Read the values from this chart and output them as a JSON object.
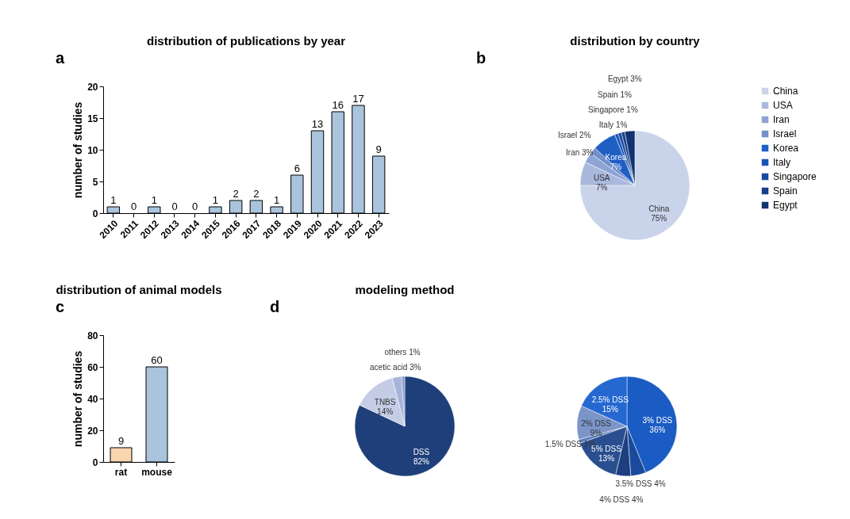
{
  "chart_data": [
    {
      "type": "bar",
      "title": "distribution of publications by year",
      "annotations": [
        "a"
      ],
      "ylabel": "number of studies",
      "categories": [
        "2010",
        "2011",
        "2012",
        "2013",
        "2014",
        "2015",
        "2016",
        "2017",
        "2018",
        "2019",
        "2020",
        "2021",
        "2022",
        "2023"
      ],
      "values": [
        1,
        0,
        1,
        0,
        0,
        1,
        2,
        2,
        1,
        6,
        13,
        16,
        17,
        9
      ],
      "color": "#a9c4dc",
      "ylim": [
        0,
        20
      ],
      "yticks": [
        0,
        5,
        10,
        15,
        20
      ],
      "data_labels": true
    },
    {
      "type": "pie",
      "title": "distribution by country",
      "annotations": [
        "b"
      ],
      "categories": [
        "China",
        "USA",
        "Iran",
        "Israel",
        "Korea",
        "Italy",
        "Singapore",
        "Spain",
        "Egypt"
      ],
      "values": [
        75,
        7,
        3,
        2,
        7,
        1,
        1,
        1,
        3
      ],
      "value_labels": [
        "75%",
        "7%",
        "3%",
        "2%",
        "7%",
        "1%",
        "1%",
        "1%",
        "3%"
      ],
      "colors": [
        "#c9d3ea",
        "#a9b8dc",
        "#8ea4d4",
        "#7390cc",
        "#1f5fc4",
        "#1a55b5",
        "#1a4aa0",
        "#163f8a",
        "#12336f"
      ],
      "legend": "right"
    },
    {
      "type": "bar",
      "title": "distribution of animal models",
      "annotations": [
        "c"
      ],
      "ylabel": "number of studies",
      "categories": [
        "rat",
        "mouse"
      ],
      "values": [
        9,
        60
      ],
      "colors": [
        "#f9d5b0",
        "#a9c4dc"
      ],
      "ylim": [
        0,
        80
      ],
      "yticks": [
        0,
        20,
        40,
        60,
        80
      ],
      "data_labels": true
    },
    {
      "type": "pie",
      "title": "modeling method",
      "annotations": [
        "d"
      ],
      "categories": [
        "DSS",
        "TNBS",
        "acetic acid",
        "others"
      ],
      "values": [
        82,
        14,
        3,
        1
      ],
      "value_labels": [
        "82%",
        "14%",
        "3%",
        "1%"
      ],
      "colors": [
        "#1e3f7a",
        "#c5cde6",
        "#a7b4d9",
        "#8b9bcc"
      ]
    },
    {
      "type": "pie",
      "categories": [
        "3% DSS",
        "3.5% DSS",
        "4% DSS",
        "5% DSS",
        "1.5% DSS",
        "2% DSS",
        "2.5% DSS"
      ],
      "values": [
        36,
        4,
        4,
        13,
        1,
        9,
        15
      ],
      "value_labels": [
        "36%",
        "4%",
        "4%",
        "13%",
        "1%",
        "9%",
        "15%"
      ],
      "colors": [
        "#1a5bc4",
        "#1a4a9c",
        "#1d3f80",
        "#2a4f90",
        "#5a7ab8",
        "#7b95c8",
        "#2468d0"
      ]
    }
  ]
}
